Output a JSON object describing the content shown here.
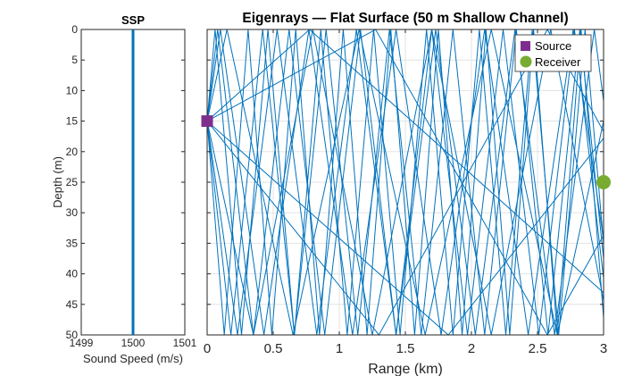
{
  "chart_data": [
    {
      "type": "line",
      "title": "SSP",
      "xlabel": "Sound Speed (m/s)",
      "ylabel": "Depth (m)",
      "xlim": [
        1499,
        1501
      ],
      "ylim": [
        0,
        50
      ],
      "y_reversed": true,
      "x_ticks": [
        "1499",
        "1500",
        "1501"
      ],
      "y_ticks": [
        "0",
        "5",
        "10",
        "15",
        "20",
        "25",
        "30",
        "35",
        "40",
        "45",
        "50"
      ],
      "series": [
        {
          "x": [
            1500,
            1500
          ],
          "y": [
            0,
            50
          ],
          "color": "#0072BD"
        }
      ],
      "grid": false
    },
    {
      "type": "line",
      "title": "Eigenrays — Flat Surface (50 m Shallow Channel)",
      "xlabel": "Range (km)",
      "ylabel": "",
      "xlim": [
        0,
        3
      ],
      "ylim": [
        0,
        50
      ],
      "y_reversed": true,
      "x_ticks": [
        "0",
        "0.5",
        "1",
        "1.5",
        "2",
        "2.5",
        "3"
      ],
      "grid": true,
      "ray_color": "#0072BD",
      "source": {
        "label": "Source",
        "range_km": 0,
        "depth_m": 15,
        "color": "#7E2F8E"
      },
      "receiver": {
        "label": "Receiver",
        "range_km": 3,
        "depth_m": 25,
        "color": "#77AC30"
      },
      "rays": [
        {
          "x": [
            0,
            0.775,
            3
          ],
          "y": [
            15,
            0,
            43.1
          ]
        },
        {
          "x": [
            0,
            1.825,
            3
          ],
          "y": [
            15,
            50,
            17.8
          ]
        },
        {
          "x": [
            0,
            0.15,
            0.65,
            1.15,
            1.65,
            2.15,
            2.65,
            3
          ],
          "y": [
            15,
            0,
            50,
            0,
            50,
            0,
            50,
            15
          ]
        },
        {
          "x": [
            0,
            0.35,
            0.8,
            1.25,
            1.7,
            2.15,
            2.6,
            3
          ],
          "y": [
            15,
            50,
            0,
            50,
            0,
            50,
            0,
            44.4
          ]
        },
        {
          "x": [
            0,
            0.1,
            0.43,
            0.77,
            1.1,
            1.43,
            1.77,
            2.1,
            2.43,
            2.77,
            3
          ],
          "y": [
            15,
            0,
            50,
            0,
            50,
            0,
            50,
            0,
            50,
            0,
            34.5
          ]
        },
        {
          "x": [
            0,
            0.23,
            0.53,
            0.83,
            1.13,
            1.43,
            1.73,
            2.03,
            2.33,
            2.63,
            2.93,
            3
          ],
          "y": [
            15,
            50,
            0,
            50,
            0,
            50,
            0,
            50,
            0,
            50,
            0,
            11.7
          ]
        },
        {
          "x": [
            0,
            0.08,
            0.35,
            0.62,
            0.89,
            1.16,
            1.43,
            1.7,
            1.97,
            2.24,
            2.51,
            2.78,
            3
          ],
          "y": [
            15,
            0,
            50,
            0,
            50,
            0,
            50,
            0,
            50,
            0,
            50,
            0,
            40.7
          ]
        },
        {
          "x": [
            0,
            0.18,
            0.42,
            0.66,
            0.9,
            1.14,
            1.38,
            1.62,
            1.86,
            2.1,
            2.34,
            2.58,
            2.82,
            3
          ],
          "y": [
            15,
            50,
            0,
            50,
            0,
            50,
            0,
            50,
            0,
            50,
            0,
            50,
            0,
            37.5
          ]
        },
        {
          "x": [
            0,
            0.06,
            0.26,
            0.46,
            0.66,
            0.86,
            1.06,
            1.26,
            1.46,
            1.66,
            1.86,
            2.06,
            2.26,
            2.46,
            2.66,
            2.86,
            3
          ],
          "y": [
            15,
            0,
            50,
            0,
            50,
            0,
            50,
            0,
            50,
            0,
            50,
            0,
            50,
            0,
            50,
            0,
            35
          ]
        },
        {
          "x": [
            0,
            0.13,
            0.31,
            0.49,
            0.67,
            0.85,
            1.03,
            1.21,
            1.39,
            1.57,
            1.75,
            1.93,
            2.11,
            2.29,
            2.47,
            2.65,
            2.83,
            3
          ],
          "y": [
            15,
            50,
            0,
            50,
            0,
            50,
            0,
            50,
            0,
            50,
            0,
            50,
            0,
            50,
            0,
            50,
            0,
            47.2
          ]
        },
        {
          "x": [
            0,
            1.3,
            2.575,
            3
          ],
          "y": [
            15,
            50,
            0,
            16.7
          ]
        },
        {
          "x": [
            0,
            1.275,
            2.575,
            3
          ],
          "y": [
            15,
            0,
            50,
            33.7
          ]
        }
      ]
    }
  ]
}
